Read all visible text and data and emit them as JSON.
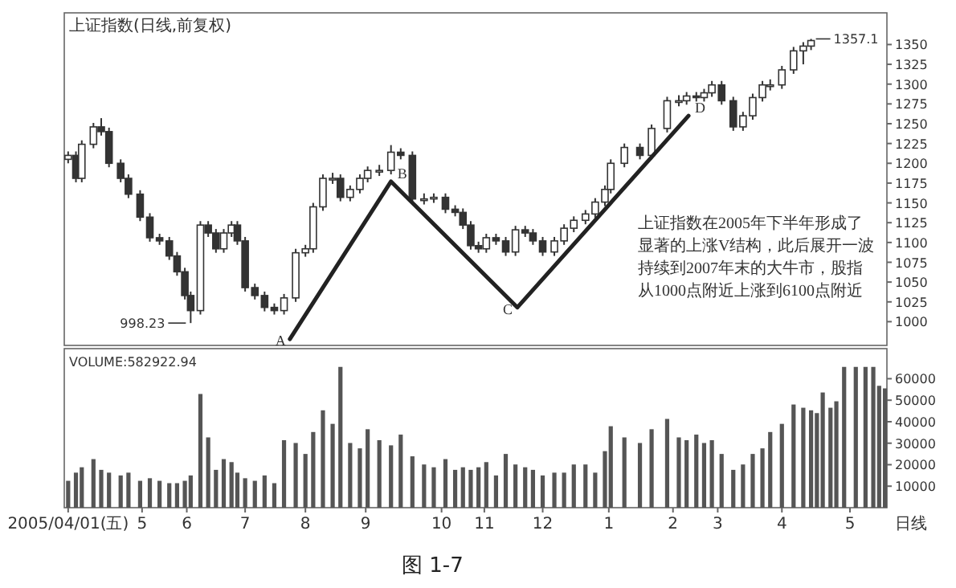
{
  "chart_data": [
    {
      "type": "candlestick",
      "title": "上证指数(日线,前复权)",
      "x": [
        "2005-04-01",
        "2005-04-05",
        "2005-04-08",
        "2005-04-14",
        "2005-04-18",
        "2005-04-22",
        "2005-04-28",
        "2005-05-02",
        "2005-05-08",
        "2005-05-13",
        "2005-05-18",
        "2005-05-23",
        "2005-05-27",
        "2005-05-31",
        "2005-06-03",
        "2005-06-08",
        "2005-06-12",
        "2005-06-16",
        "2005-06-20",
        "2005-06-24",
        "2005-06-27",
        "2005-07-01",
        "2005-07-06",
        "2005-07-11",
        "2005-07-16",
        "2005-07-21",
        "2005-07-27",
        "2005-08-01",
        "2005-08-05",
        "2005-08-10",
        "2005-08-15",
        "2005-08-19",
        "2005-08-24",
        "2005-08-29",
        "2005-09-02",
        "2005-09-08",
        "2005-09-14",
        "2005-09-19",
        "2005-09-25",
        "2005-10-01",
        "2005-10-06",
        "2005-10-12",
        "2005-10-17",
        "2005-10-21",
        "2005-10-25",
        "2005-10-29",
        "2005-11-02",
        "2005-11-07",
        "2005-11-12",
        "2005-11-17",
        "2005-11-22",
        "2005-11-26",
        "2005-12-01",
        "2005-12-07",
        "2005-12-12",
        "2005-12-17",
        "2005-12-23",
        "2005-12-28",
        "2006-01-02",
        "2006-01-05",
        "2006-01-12",
        "2006-01-20",
        "2006-01-26",
        "2006-02-03",
        "2006-02-09",
        "2006-02-13",
        "2006-02-18",
        "2006-02-22",
        "2006-02-26",
        "2006-03-03",
        "2006-03-09",
        "2006-03-14",
        "2006-03-19",
        "2006-03-24",
        "2006-03-28",
        "2006-04-03",
        "2006-04-09",
        "2006-04-14",
        "2006-04-18"
      ],
      "ohlc": [
        [
          1205,
          1215,
          1200,
          1210
        ],
        [
          1210,
          1215,
          1176,
          1181
        ],
        [
          1181,
          1229,
          1176,
          1224
        ],
        [
          1224,
          1251,
          1219,
          1246
        ],
        [
          1246,
          1257,
          1235,
          1240
        ],
        [
          1240,
          1245,
          1195,
          1200
        ],
        [
          1200,
          1205,
          1176,
          1181
        ],
        [
          1181,
          1186,
          1156,
          1161
        ],
        [
          1161,
          1166,
          1127,
          1132
        ],
        [
          1132,
          1137,
          1101,
          1106
        ],
        [
          1106,
          1111,
          1097,
          1102
        ],
        [
          1102,
          1107,
          1078,
          1083
        ],
        [
          1083,
          1088,
          1058,
          1063
        ],
        [
          1063,
          1068,
          1028,
          1033
        ],
        [
          1033,
          1038,
          998.23,
          1014
        ],
        [
          1014,
          1127,
          1009,
          1122
        ],
        [
          1122,
          1127,
          1107,
          1112
        ],
        [
          1112,
          1117,
          1087,
          1092
        ],
        [
          1092,
          1117,
          1087,
          1112
        ],
        [
          1112,
          1127,
          1107,
          1122
        ],
        [
          1122,
          1127,
          1097,
          1102
        ],
        [
          1102,
          1107,
          1038,
          1043
        ],
        [
          1043,
          1048,
          1028,
          1033
        ],
        [
          1033,
          1038,
          1013,
          1018
        ],
        [
          1018,
          1023,
          1009,
          1014
        ],
        [
          1014,
          1035,
          1009,
          1030
        ],
        [
          1030,
          1092,
          1025,
          1087
        ],
        [
          1087,
          1097,
          1082,
          1092
        ],
        [
          1092,
          1150,
          1087,
          1145
        ],
        [
          1145,
          1186,
          1140,
          1181
        ],
        [
          1181,
          1188,
          1174,
          1181
        ],
        [
          1181,
          1186,
          1152,
          1157
        ],
        [
          1157,
          1172,
          1152,
          1167
        ],
        [
          1167,
          1186,
          1162,
          1181
        ],
        [
          1181,
          1196,
          1176,
          1191
        ],
        [
          1191,
          1198,
          1184,
          1191
        ],
        [
          1191,
          1223,
          1186,
          1214
        ],
        [
          1214,
          1219,
          1205,
          1210
        ],
        [
          1210,
          1215,
          1150,
          1155
        ],
        [
          1155,
          1162,
          1148,
          1155
        ],
        [
          1155,
          1162,
          1150,
          1157
        ],
        [
          1157,
          1162,
          1137,
          1142
        ],
        [
          1142,
          1147,
          1133,
          1138
        ],
        [
          1138,
          1143,
          1117,
          1122
        ],
        [
          1122,
          1127,
          1091,
          1096
        ],
        [
          1096,
          1101,
          1087,
          1092
        ],
        [
          1092,
          1111,
          1087,
          1106
        ],
        [
          1106,
          1111,
          1097,
          1102
        ],
        [
          1102,
          1107,
          1083,
          1088
        ],
        [
          1088,
          1121,
          1083,
          1116
        ],
        [
          1116,
          1121,
          1107,
          1112
        ],
        [
          1112,
          1117,
          1097,
          1102
        ],
        [
          1102,
          1107,
          1083,
          1088
        ],
        [
          1088,
          1107,
          1083,
          1102
        ],
        [
          1102,
          1123,
          1097,
          1118
        ],
        [
          1118,
          1133,
          1113,
          1128
        ],
        [
          1128,
          1141,
          1123,
          1136
        ],
        [
          1136,
          1156,
          1131,
          1151
        ],
        [
          1151,
          1172,
          1146,
          1167
        ],
        [
          1167,
          1205,
          1162,
          1200
        ],
        [
          1200,
          1225,
          1195,
          1220
        ],
        [
          1220,
          1225,
          1205,
          1210
        ],
        [
          1210,
          1249,
          1205,
          1244
        ],
        [
          1244,
          1284,
          1239,
          1279
        ],
        [
          1279,
          1286,
          1272,
          1279
        ],
        [
          1279,
          1290,
          1274,
          1285
        ],
        [
          1285,
          1290,
          1278,
          1283
        ],
        [
          1283,
          1294,
          1278,
          1289
        ],
        [
          1289,
          1304,
          1284,
          1299
        ],
        [
          1299,
          1304,
          1274,
          1279
        ],
        [
          1279,
          1284,
          1241,
          1246
        ],
        [
          1246,
          1265,
          1241,
          1260
        ],
        [
          1260,
          1288,
          1255,
          1283
        ],
        [
          1283,
          1304,
          1278,
          1299
        ],
        [
          1299,
          1306,
          1292,
          1299
        ],
        [
          1299,
          1323,
          1294,
          1318
        ],
        [
          1318,
          1347,
          1313,
          1342
        ],
        [
          1342,
          1353,
          1325,
          1348
        ],
        [
          1348,
          1357.1,
          1343,
          1355
        ]
      ],
      "series": [
        {
          "type": "line",
          "x": [
            "2005-07-24",
            "2005-09-14",
            "2005-11-18",
            "2006-02-14"
          ],
          "values": [
            978,
            1177,
            1018,
            1260
          ],
          "color": "#222222"
        }
      ],
      "annotations": [
        {
          "text": "1357.1",
          "x": "2006-04-18",
          "y": 1357.1
        },
        "上证指数在2005年下半年形成了显著的上涨V结构，此后展开一波持续到2007年末的大牛市，股指从1000点附近上涨到6100点附近",
        {
          "text": "998.23",
          "x": "2005-06-03",
          "y": 998.23
        },
        {
          "text": "A",
          "x": "2005-07-24",
          "y": 978
        },
        {
          "text": "B",
          "x": "2005-09-14",
          "y": 1177
        },
        {
          "text": "C",
          "x": "2005-11-18",
          "y": 1018
        },
        {
          "text": "D",
          "x": "2006-02-14",
          "y": 1260
        }
      ],
      "xlim": [
        "2005-03-30",
        "2006-05-27"
      ],
      "ylim": [
        970,
        1390
      ],
      "yticks": [
        1000,
        1025,
        1050,
        1075,
        1100,
        1125,
        1150,
        1175,
        1200,
        1225,
        1250,
        1275,
        1300,
        1325,
        1350
      ],
      "tick_labels": "y"
    },
    {
      "type": "bar",
      "title": "VOLUME:582922.94",
      "x": [
        "2005-04-01",
        "2005-04-05",
        "2005-04-08",
        "2005-04-14",
        "2005-04-18",
        "2005-04-22",
        "2005-04-28",
        "2005-05-02",
        "2005-05-08",
        "2005-05-13",
        "2005-05-18",
        "2005-05-23",
        "2005-05-27",
        "2005-05-31",
        "2005-06-03",
        "2005-06-08",
        "2005-06-12",
        "2005-06-16",
        "2005-06-20",
        "2005-06-24",
        "2005-06-27",
        "2005-07-01",
        "2005-07-06",
        "2005-07-11",
        "2005-07-16",
        "2005-07-21",
        "2005-07-27",
        "2005-08-01",
        "2005-08-05",
        "2005-08-10",
        "2005-08-15",
        "2005-08-19",
        "2005-08-24",
        "2005-08-29",
        "2005-09-02",
        "2005-09-08",
        "2005-09-14",
        "2005-09-19",
        "2005-09-25",
        "2005-10-01",
        "2005-10-06",
        "2005-10-12",
        "2005-10-17",
        "2005-10-21",
        "2005-10-25",
        "2005-10-29",
        "2005-11-02",
        "2005-11-07",
        "2005-11-12",
        "2005-11-17",
        "2005-11-22",
        "2005-11-26",
        "2005-12-01",
        "2005-12-07",
        "2005-12-12",
        "2005-12-17",
        "2005-12-23",
        "2005-12-28",
        "2006-01-02",
        "2006-01-05",
        "2006-01-12",
        "2006-01-20",
        "2006-01-26",
        "2006-02-03",
        "2006-02-09",
        "2006-02-13",
        "2006-02-18",
        "2006-02-22",
        "2006-02-26",
        "2006-03-03",
        "2006-03-09",
        "2006-03-14",
        "2006-03-19",
        "2006-03-24",
        "2006-03-28",
        "2006-04-03",
        "2006-04-09",
        "2006-04-14",
        "2006-04-18",
        "2006-04-21",
        "2006-04-24",
        "2006-04-28",
        "2006-05-01",
        "2006-05-05",
        "2006-05-11",
        "2006-05-16",
        "2006-05-20",
        "2006-05-23",
        "2006-05-26"
      ],
      "values": [
        12500,
        16300,
        18800,
        22600,
        17600,
        16300,
        15000,
        16300,
        12500,
        13700,
        12500,
        11400,
        11400,
        12500,
        15000,
        52900,
        32700,
        17600,
        22600,
        21200,
        16300,
        13700,
        12500,
        15000,
        11400,
        31400,
        30100,
        25000,
        35200,
        45300,
        39000,
        65500,
        30100,
        27600,
        36500,
        31400,
        29000,
        34000,
        23900,
        20100,
        18800,
        22600,
        17600,
        18800,
        17600,
        18800,
        21200,
        15000,
        25000,
        20100,
        18800,
        17600,
        15000,
        16300,
        16300,
        20100,
        20100,
        16300,
        26300,
        37900,
        32700,
        30100,
        36500,
        41300,
        32700,
        31400,
        34000,
        30100,
        31400,
        25000,
        17600,
        20100,
        25000,
        27600,
        35200,
        39000,
        48000,
        46500,
        45300,
        44000,
        53600,
        46500,
        49500,
        65500,
        65500,
        65500,
        65500,
        56700,
        55500
      ],
      "color": "#555555",
      "xlim": [
        "2005-03-30",
        "2006-05-27"
      ],
      "ylim": [
        0,
        74000
      ],
      "yticks": [
        10000,
        20000,
        30000,
        40000,
        50000,
        60000
      ],
      "xticks": [
        {
          "value": "2005-04-01",
          "label": "2005/04/01(五)"
        },
        {
          "value": "2005-05-09",
          "label": "5"
        },
        {
          "value": "2005-06-01",
          "label": "6"
        },
        {
          "value": "2005-07-01",
          "label": "7"
        },
        {
          "value": "2005-08-01",
          "label": "8"
        },
        {
          "value": "2005-09-01",
          "label": "9"
        },
        {
          "value": "2005-10-10",
          "label": "10"
        },
        {
          "value": "2005-11-01",
          "label": "11"
        },
        {
          "value": "2005-12-01",
          "label": "12"
        },
        {
          "value": "2006-01-04",
          "label": "1"
        },
        {
          "value": "2006-02-06",
          "label": "2"
        },
        {
          "value": "2006-03-01",
          "label": "3"
        },
        {
          "value": "2006-04-03",
          "label": "4"
        },
        {
          "value": "2006-05-08",
          "label": "5"
        }
      ],
      "annotations": [
        "日线",
        "图 1-7"
      ]
    }
  ]
}
